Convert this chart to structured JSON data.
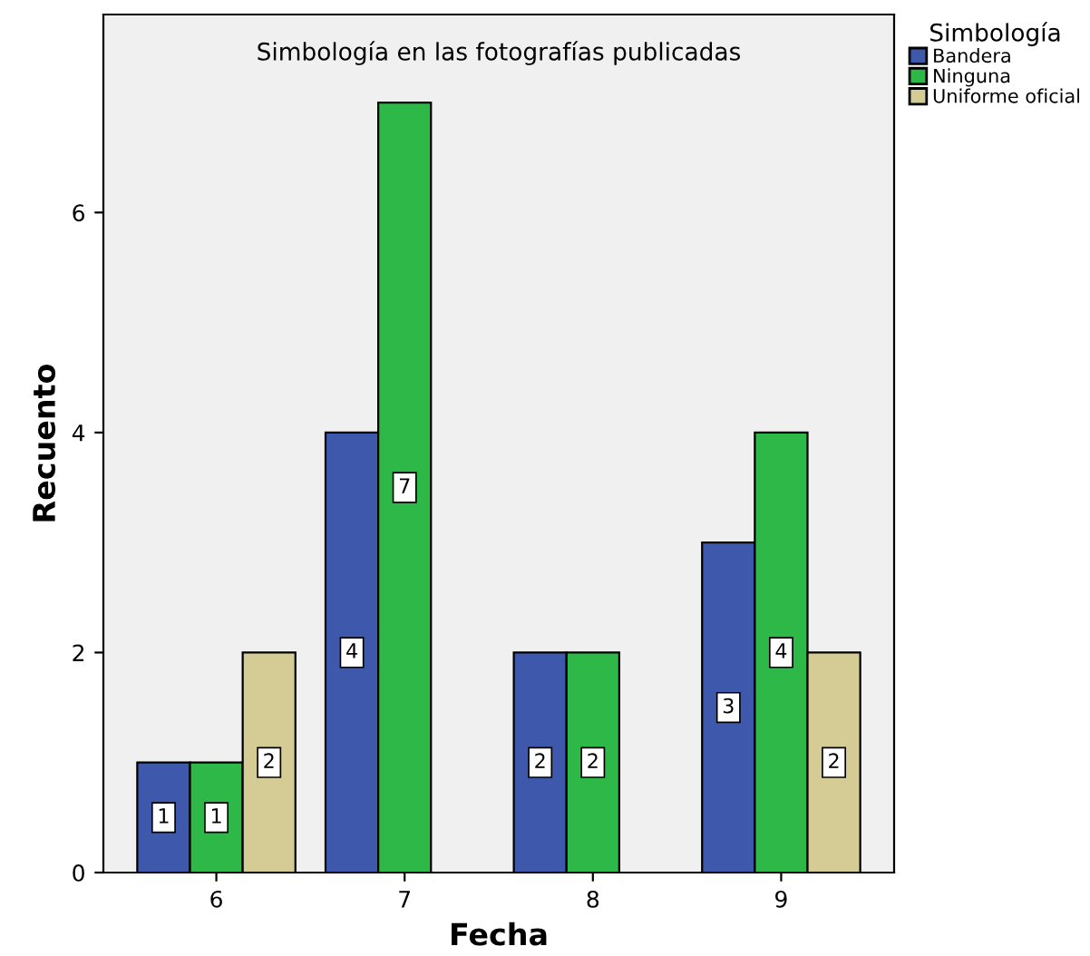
{
  "chart_data": {
    "type": "bar",
    "title": "Simbología en las fotografías publicadas",
    "xlabel": "Fecha",
    "ylabel": "Recuento",
    "legend_title": "Simbología",
    "categories": [
      "6",
      "7",
      "8",
      "9"
    ],
    "series": [
      {
        "name": "Bandera",
        "color": "#3e58ac",
        "values": [
          1,
          4,
          2,
          3
        ]
      },
      {
        "name": "Ninguna",
        "color": "#2eb848",
        "values": [
          1,
          7,
          2,
          4
        ]
      },
      {
        "name": "Uniforme oficial",
        "color": "#d4cc94",
        "values": [
          2,
          null,
          null,
          2
        ]
      }
    ],
    "ylim": [
      0,
      7.8
    ],
    "yticks": [
      0,
      2,
      4,
      6
    ],
    "grid": false,
    "legend": "right",
    "data_labels": true
  }
}
